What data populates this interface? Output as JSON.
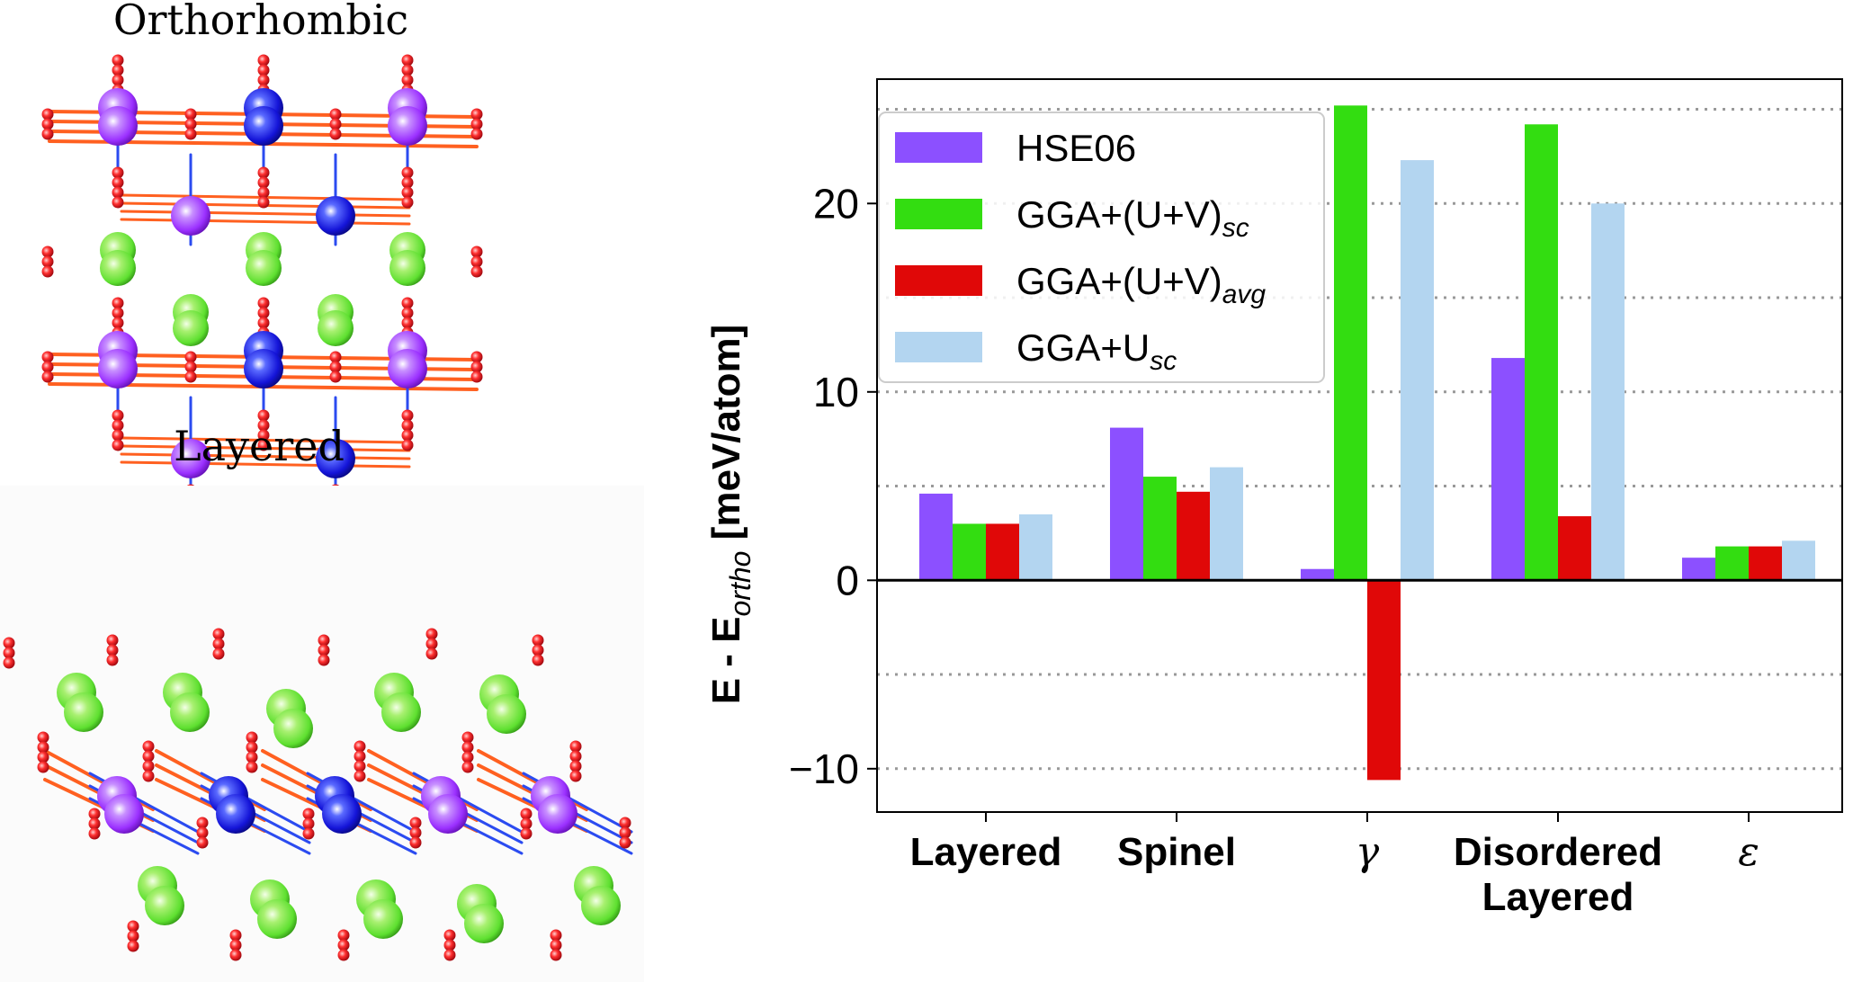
{
  "panels": {
    "top_title": "Orthorhombic",
    "bottom_title": "Layered"
  },
  "colors": {
    "purple_atom": "#9b30ff",
    "blue_atom": "#1414d8",
    "green_atom": "#5ee030",
    "red_atom": "#e0101a",
    "bond_orange": "#ff6020",
    "bond_blue": "#2b4bf0"
  },
  "chart_data": {
    "type": "bar",
    "categories": [
      "Layered",
      "Spinel",
      "γ",
      "Disordered Layered",
      "ε"
    ],
    "category_lines": [
      [
        "Layered"
      ],
      [
        "Spinel"
      ],
      [
        "γ"
      ],
      [
        "Disordered",
        "Layered"
      ],
      [
        "ε"
      ]
    ],
    "series": [
      {
        "name": "HSE06",
        "name_parts": [
          "HSE06",
          ""
        ],
        "color": "#8c50ff",
        "values": [
          4.6,
          8.1,
          0.6,
          11.8,
          1.2
        ]
      },
      {
        "name": "GGA+(U+V)sc",
        "name_parts": [
          "GGA+(U+V)",
          "sc"
        ],
        "color": "#33dd11",
        "values": [
          3.0,
          5.5,
          25.2,
          24.2,
          1.8
        ]
      },
      {
        "name": "GGA+(U+V)avg",
        "name_parts": [
          "GGA+(U+V)",
          "avg"
        ],
        "color": "#e00808",
        "values": [
          3.0,
          4.7,
          -10.6,
          3.4,
          1.8
        ]
      },
      {
        "name": "GGA+Usc",
        "name_parts": [
          "GGA+U",
          "sc"
        ],
        "color": "#b3d5f0",
        "values": [
          3.5,
          6.0,
          22.3,
          20.0,
          2.1
        ]
      }
    ],
    "ylabel_main": "E - E",
    "ylabel_sub": "ortho",
    "ylabel_unit": " [meV/atom]",
    "ylim": [
      -12.3,
      26.6
    ],
    "yticks": [
      -10,
      0,
      10,
      20
    ],
    "ytick_labels": [
      "−10",
      "0",
      "10",
      "20"
    ],
    "grid_y": [
      -10,
      -5,
      5,
      10,
      15,
      20,
      25
    ],
    "grid": "horizontal dotted",
    "legend_position": "upper-left"
  }
}
